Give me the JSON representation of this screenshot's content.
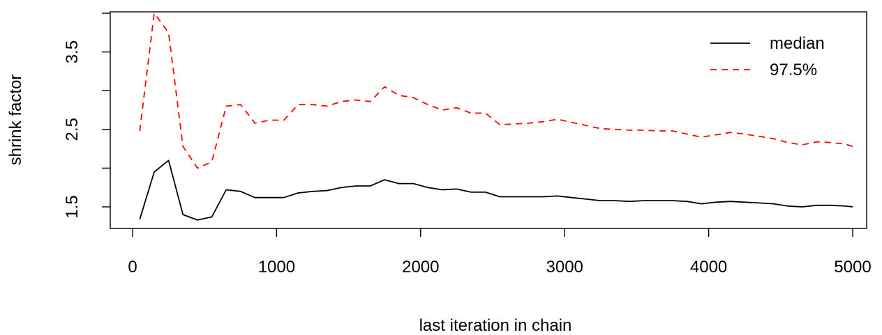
{
  "chart_data": {
    "type": "line",
    "title": "",
    "xlabel": "last iteration in chain",
    "ylabel": "shrink factor",
    "xlim": [
      0,
      5000
    ],
    "ylim": [
      1.33,
      4.02
    ],
    "xticks": [
      0,
      1000,
      2000,
      3000,
      4000,
      5000
    ],
    "yticks": [
      1.5,
      2.0,
      2.5,
      3.0,
      3.5,
      4.0
    ],
    "ytick_labels": [
      "1.5",
      "",
      "2.5",
      "",
      "3.5",
      ""
    ],
    "legend_position": "top-right",
    "grid": false,
    "x": [
      50,
      150,
      250,
      350,
      450,
      550,
      650,
      750,
      850,
      950,
      1050,
      1150,
      1250,
      1350,
      1450,
      1550,
      1650,
      1750,
      1850,
      1950,
      2050,
      2150,
      2250,
      2350,
      2450,
      2550,
      2650,
      2750,
      2850,
      2950,
      3050,
      3150,
      3250,
      3350,
      3450,
      3550,
      3650,
      3750,
      3850,
      3950,
      4050,
      4150,
      4250,
      4350,
      4450,
      4550,
      4650,
      4750,
      4850,
      4950,
      5000
    ],
    "series": [
      {
        "name": "median",
        "color": "#000000",
        "dash": "solid",
        "values": [
          1.34,
          1.95,
          2.1,
          1.4,
          1.33,
          1.37,
          1.72,
          1.7,
          1.62,
          1.62,
          1.62,
          1.68,
          1.7,
          1.71,
          1.75,
          1.77,
          1.77,
          1.85,
          1.8,
          1.8,
          1.75,
          1.72,
          1.73,
          1.69,
          1.69,
          1.63,
          1.63,
          1.63,
          1.63,
          1.64,
          1.62,
          1.6,
          1.58,
          1.58,
          1.57,
          1.58,
          1.58,
          1.58,
          1.57,
          1.54,
          1.56,
          1.57,
          1.56,
          1.55,
          1.54,
          1.51,
          1.5,
          1.52,
          1.52,
          1.51,
          1.5
        ]
      },
      {
        "name": "97.5%",
        "color": "#ff0000",
        "dash": "dashed",
        "values": [
          2.48,
          4.0,
          3.75,
          2.28,
          2.0,
          2.08,
          2.8,
          2.82,
          2.58,
          2.62,
          2.62,
          2.82,
          2.82,
          2.8,
          2.86,
          2.88,
          2.86,
          3.05,
          2.94,
          2.91,
          2.82,
          2.75,
          2.78,
          2.71,
          2.71,
          2.56,
          2.57,
          2.58,
          2.6,
          2.63,
          2.59,
          2.55,
          2.51,
          2.5,
          2.49,
          2.49,
          2.48,
          2.48,
          2.44,
          2.4,
          2.43,
          2.46,
          2.44,
          2.41,
          2.38,
          2.33,
          2.3,
          2.34,
          2.33,
          2.31,
          2.28
        ]
      }
    ]
  }
}
